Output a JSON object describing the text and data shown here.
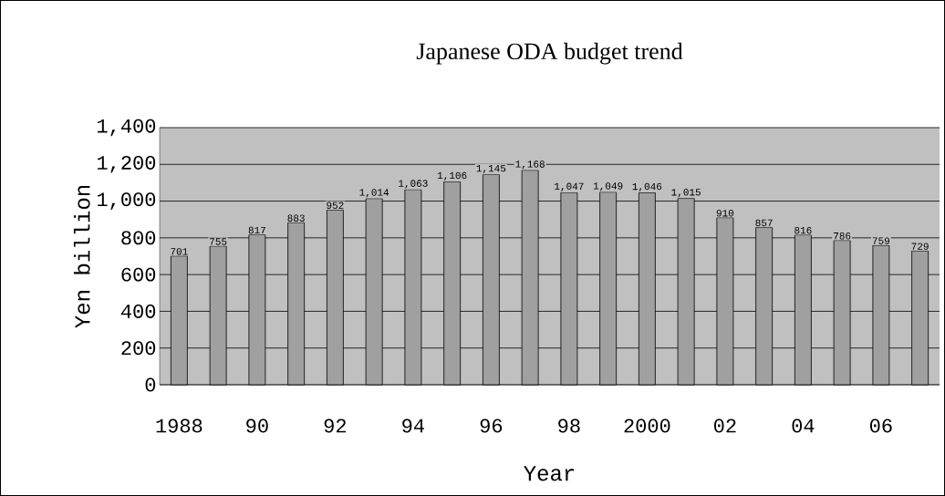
{
  "chart_data": {
    "type": "bar",
    "title": "Japanese ODA budget trend",
    "xlabel": "Year",
    "ylabel": "Yen billion",
    "categories": [
      "1988",
      null,
      "90",
      null,
      "92",
      null,
      "94",
      null,
      "96",
      null,
      "98",
      null,
      "2000",
      null,
      "02",
      null,
      "04",
      null,
      "06",
      null
    ],
    "values": [
      701,
      755,
      817,
      883,
      952,
      1014,
      1063,
      1106,
      1145,
      1168,
      1047,
      1049,
      1046,
      1015,
      910,
      857,
      816,
      786,
      759,
      729
    ],
    "value_labels": [
      "701",
      "755",
      "817",
      "883",
      "952",
      "1,014",
      "1,063",
      "1,106",
      "1,145",
      "1,168",
      "1,047",
      "1,049",
      "1,046",
      "1,015",
      "910",
      "857",
      "816",
      "786",
      "759",
      "729"
    ],
    "color": "#a0a0a0",
    "ylim": [
      0,
      1400
    ],
    "yticks": [
      0,
      200,
      400,
      600,
      800,
      {
        "value": 1000,
        "label": "1,000"
      },
      {
        "value": 1200,
        "label": "1,200"
      },
      {
        "value": 1400,
        "label": "1,400"
      }
    ],
    "grid": "y"
  }
}
